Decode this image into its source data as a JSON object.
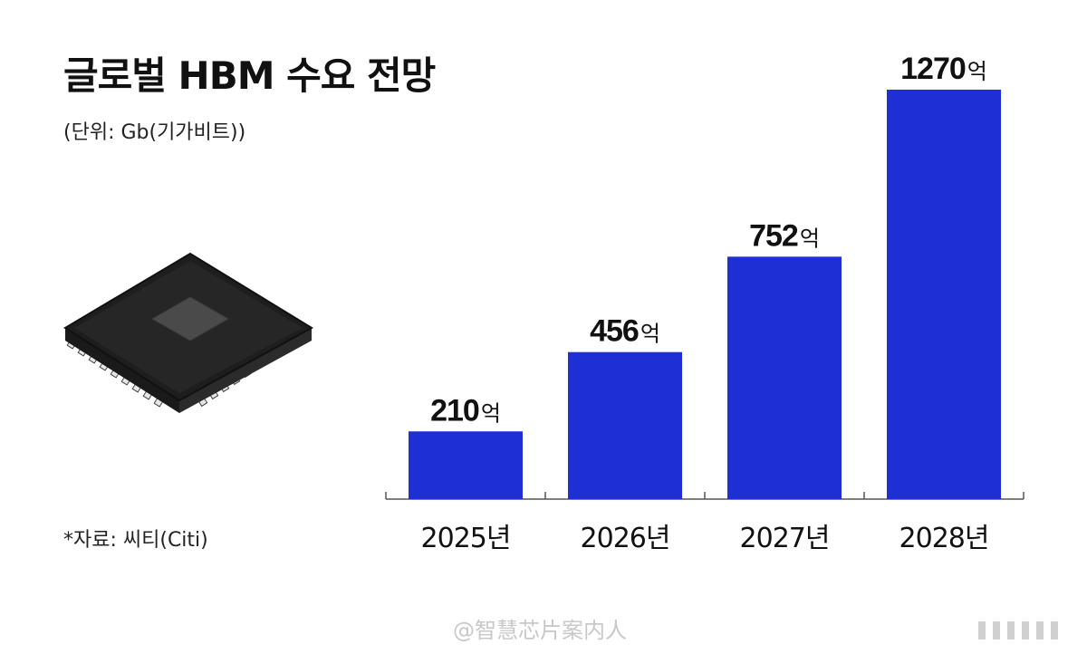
{
  "header": {
    "title": "글로벌 HBM 수요 전망",
    "unit_note": "(단위: Gb(기가비트))"
  },
  "footer": {
    "source": "*자료: 씨티(Citi)",
    "watermark": "@智慧芯片案内人"
  },
  "illustration": {
    "icon": "chip-icon"
  },
  "colors": {
    "bar": "#1f2fd6",
    "axis": "#555555",
    "text": "#111111"
  },
  "chart_data": {
    "type": "bar",
    "title": "글로벌 HBM 수요 전망",
    "ylabel": "",
    "xlabel": "",
    "categories": [
      "2025년",
      "2026년",
      "2027년",
      "2028년"
    ],
    "values": [
      210,
      456,
      752,
      1270
    ],
    "value_suffix": "억",
    "ylim": [
      0,
      1270
    ],
    "grid": false,
    "legend": "none"
  }
}
